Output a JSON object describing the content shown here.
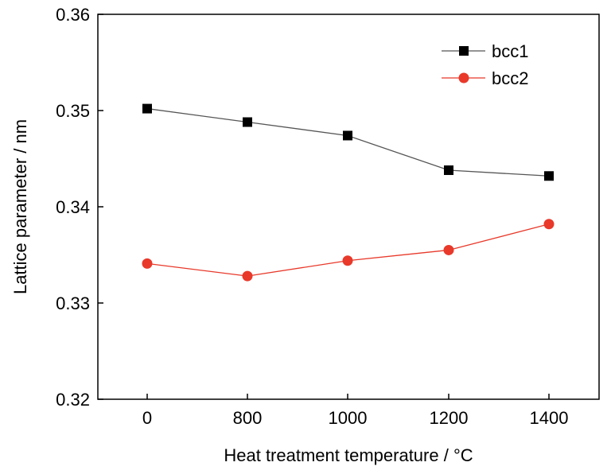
{
  "chart_data": {
    "type": "line",
    "title": "",
    "xlabel": "Heat treatment temperature / °C",
    "ylabel": "Lattice parameter / nm",
    "categories": [
      "0",
      "800",
      "1000",
      "1200",
      "1400"
    ],
    "y_ticks": [
      "0.32",
      "0.33",
      "0.34",
      "0.35",
      "0.36"
    ],
    "ylim": [
      0.32,
      0.36
    ],
    "grid": false,
    "legend_position": "top-right",
    "series": [
      {
        "name": "bcc1",
        "color": "#000000",
        "line_color": "#555555",
        "marker": "square",
        "values": [
          0.3502,
          0.3488,
          0.3474,
          0.3438,
          0.3432
        ]
      },
      {
        "name": "bcc2",
        "color": "#e8392a",
        "line_color": "#e8392a",
        "marker": "circle",
        "values": [
          0.3341,
          0.3328,
          0.3344,
          0.3355,
          0.3382
        ]
      }
    ]
  }
}
